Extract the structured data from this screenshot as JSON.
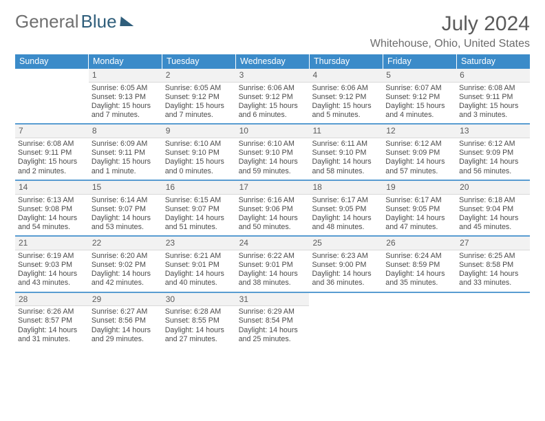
{
  "brand": {
    "part1": "General",
    "part2": "Blue"
  },
  "header": {
    "title": "July 2024",
    "location": "Whitehouse, Ohio, United States"
  },
  "colors": {
    "blue": "#3b8bc9",
    "dark_blue": "#2f5e7b",
    "text": "#4a4a4a",
    "cell_bg": "#f2f2f2",
    "white": "#ffffff"
  },
  "dow": [
    "Sunday",
    "Monday",
    "Tuesday",
    "Wednesday",
    "Thursday",
    "Friday",
    "Saturday"
  ],
  "weeks": [
    [
      null,
      {
        "d": "1",
        "sr": "Sunrise: 6:05 AM",
        "ss": "Sunset: 9:13 PM",
        "dl": "Daylight: 15 hours and 7 minutes."
      },
      {
        "d": "2",
        "sr": "Sunrise: 6:05 AM",
        "ss": "Sunset: 9:12 PM",
        "dl": "Daylight: 15 hours and 7 minutes."
      },
      {
        "d": "3",
        "sr": "Sunrise: 6:06 AM",
        "ss": "Sunset: 9:12 PM",
        "dl": "Daylight: 15 hours and 6 minutes."
      },
      {
        "d": "4",
        "sr": "Sunrise: 6:06 AM",
        "ss": "Sunset: 9:12 PM",
        "dl": "Daylight: 15 hours and 5 minutes."
      },
      {
        "d": "5",
        "sr": "Sunrise: 6:07 AM",
        "ss": "Sunset: 9:12 PM",
        "dl": "Daylight: 15 hours and 4 minutes."
      },
      {
        "d": "6",
        "sr": "Sunrise: 6:08 AM",
        "ss": "Sunset: 9:11 PM",
        "dl": "Daylight: 15 hours and 3 minutes."
      }
    ],
    [
      {
        "d": "7",
        "sr": "Sunrise: 6:08 AM",
        "ss": "Sunset: 9:11 PM",
        "dl": "Daylight: 15 hours and 2 minutes."
      },
      {
        "d": "8",
        "sr": "Sunrise: 6:09 AM",
        "ss": "Sunset: 9:11 PM",
        "dl": "Daylight: 15 hours and 1 minute."
      },
      {
        "d": "9",
        "sr": "Sunrise: 6:10 AM",
        "ss": "Sunset: 9:10 PM",
        "dl": "Daylight: 15 hours and 0 minutes."
      },
      {
        "d": "10",
        "sr": "Sunrise: 6:10 AM",
        "ss": "Sunset: 9:10 PM",
        "dl": "Daylight: 14 hours and 59 minutes."
      },
      {
        "d": "11",
        "sr": "Sunrise: 6:11 AM",
        "ss": "Sunset: 9:10 PM",
        "dl": "Daylight: 14 hours and 58 minutes."
      },
      {
        "d": "12",
        "sr": "Sunrise: 6:12 AM",
        "ss": "Sunset: 9:09 PM",
        "dl": "Daylight: 14 hours and 57 minutes."
      },
      {
        "d": "13",
        "sr": "Sunrise: 6:12 AM",
        "ss": "Sunset: 9:09 PM",
        "dl": "Daylight: 14 hours and 56 minutes."
      }
    ],
    [
      {
        "d": "14",
        "sr": "Sunrise: 6:13 AM",
        "ss": "Sunset: 9:08 PM",
        "dl": "Daylight: 14 hours and 54 minutes."
      },
      {
        "d": "15",
        "sr": "Sunrise: 6:14 AM",
        "ss": "Sunset: 9:07 PM",
        "dl": "Daylight: 14 hours and 53 minutes."
      },
      {
        "d": "16",
        "sr": "Sunrise: 6:15 AM",
        "ss": "Sunset: 9:07 PM",
        "dl": "Daylight: 14 hours and 51 minutes."
      },
      {
        "d": "17",
        "sr": "Sunrise: 6:16 AM",
        "ss": "Sunset: 9:06 PM",
        "dl": "Daylight: 14 hours and 50 minutes."
      },
      {
        "d": "18",
        "sr": "Sunrise: 6:17 AM",
        "ss": "Sunset: 9:05 PM",
        "dl": "Daylight: 14 hours and 48 minutes."
      },
      {
        "d": "19",
        "sr": "Sunrise: 6:17 AM",
        "ss": "Sunset: 9:05 PM",
        "dl": "Daylight: 14 hours and 47 minutes."
      },
      {
        "d": "20",
        "sr": "Sunrise: 6:18 AM",
        "ss": "Sunset: 9:04 PM",
        "dl": "Daylight: 14 hours and 45 minutes."
      }
    ],
    [
      {
        "d": "21",
        "sr": "Sunrise: 6:19 AM",
        "ss": "Sunset: 9:03 PM",
        "dl": "Daylight: 14 hours and 43 minutes."
      },
      {
        "d": "22",
        "sr": "Sunrise: 6:20 AM",
        "ss": "Sunset: 9:02 PM",
        "dl": "Daylight: 14 hours and 42 minutes."
      },
      {
        "d": "23",
        "sr": "Sunrise: 6:21 AM",
        "ss": "Sunset: 9:01 PM",
        "dl": "Daylight: 14 hours and 40 minutes."
      },
      {
        "d": "24",
        "sr": "Sunrise: 6:22 AM",
        "ss": "Sunset: 9:01 PM",
        "dl": "Daylight: 14 hours and 38 minutes."
      },
      {
        "d": "25",
        "sr": "Sunrise: 6:23 AM",
        "ss": "Sunset: 9:00 PM",
        "dl": "Daylight: 14 hours and 36 minutes."
      },
      {
        "d": "26",
        "sr": "Sunrise: 6:24 AM",
        "ss": "Sunset: 8:59 PM",
        "dl": "Daylight: 14 hours and 35 minutes."
      },
      {
        "d": "27",
        "sr": "Sunrise: 6:25 AM",
        "ss": "Sunset: 8:58 PM",
        "dl": "Daylight: 14 hours and 33 minutes."
      }
    ],
    [
      {
        "d": "28",
        "sr": "Sunrise: 6:26 AM",
        "ss": "Sunset: 8:57 PM",
        "dl": "Daylight: 14 hours and 31 minutes."
      },
      {
        "d": "29",
        "sr": "Sunrise: 6:27 AM",
        "ss": "Sunset: 8:56 PM",
        "dl": "Daylight: 14 hours and 29 minutes."
      },
      {
        "d": "30",
        "sr": "Sunrise: 6:28 AM",
        "ss": "Sunset: 8:55 PM",
        "dl": "Daylight: 14 hours and 27 minutes."
      },
      {
        "d": "31",
        "sr": "Sunrise: 6:29 AM",
        "ss": "Sunset: 8:54 PM",
        "dl": "Daylight: 14 hours and 25 minutes."
      },
      null,
      null,
      null
    ]
  ]
}
